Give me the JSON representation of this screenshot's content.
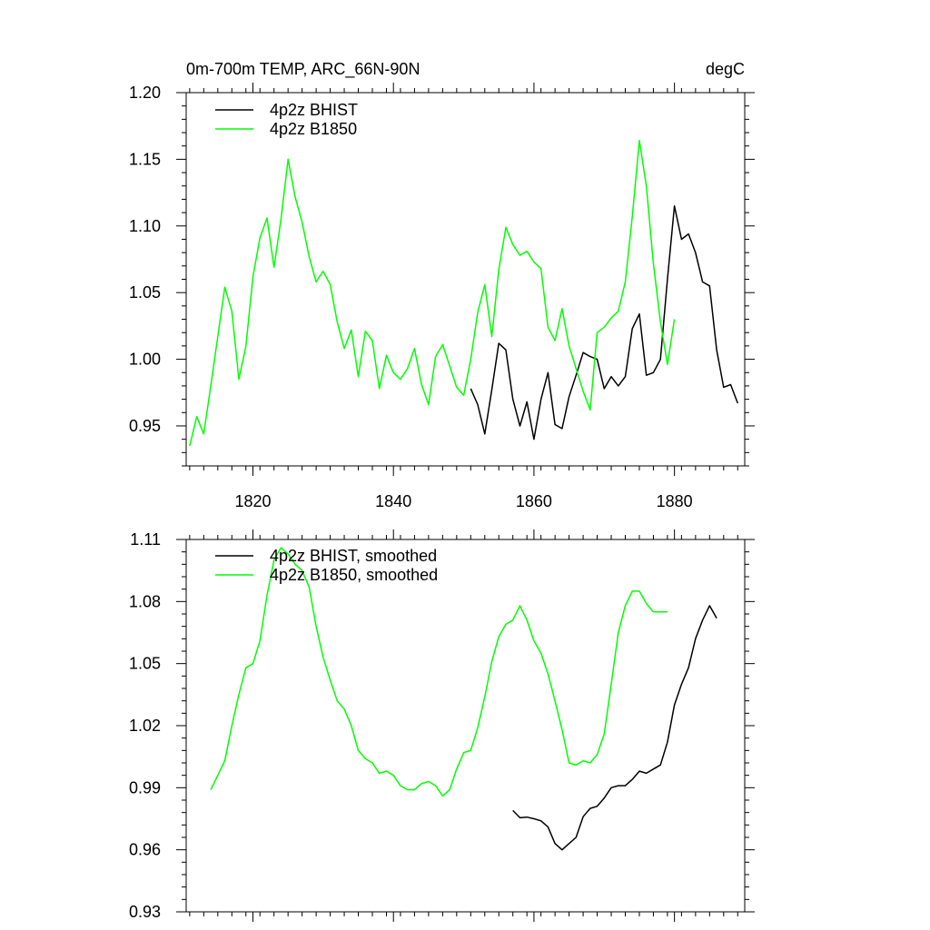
{
  "figure": {
    "title_left": "0m-700m TEMP, ARC_66N-90N",
    "title_right": "degC"
  },
  "colors": {
    "bhist": "#000000",
    "b1850": "#00ff00",
    "axis": "#000000"
  },
  "chart_data": [
    {
      "type": "line",
      "xlim": [
        1810.5,
        1890
      ],
      "ylim": [
        0.92,
        1.2
      ],
      "x_ticks": [
        1820,
        1840,
        1860,
        1880
      ],
      "x_tick_labels": [
        "1820",
        "1840",
        "1860",
        "1880"
      ],
      "y_ticks": [
        0.95,
        1.0,
        1.05,
        1.1,
        1.15,
        1.2
      ],
      "y_tick_labels": [
        "0.95",
        "1.00",
        "1.05",
        "1.10",
        "1.15",
        "1.20"
      ],
      "legend": [
        "4p2z BHIST",
        "4p2z B1850"
      ],
      "series": [
        {
          "name": "4p2z BHIST",
          "color": "#000000",
          "x": [
            1851,
            1852,
            1853,
            1854,
            1855,
            1856,
            1857,
            1858,
            1859,
            1860,
            1861,
            1862,
            1863,
            1864,
            1865,
            1866,
            1867,
            1868,
            1869,
            1870,
            1871,
            1872,
            1873,
            1874,
            1875,
            1876,
            1877,
            1878,
            1879,
            1880,
            1881,
            1882,
            1883,
            1884,
            1885,
            1886,
            1887,
            1888,
            1889
          ],
          "values": [
            0.978,
            0.966,
            0.944,
            0.977,
            1.012,
            1.007,
            0.97,
            0.95,
            0.968,
            0.94,
            0.97,
            0.99,
            0.951,
            0.948,
            0.972,
            0.988,
            1.005,
            1.002,
            1.0,
            0.978,
            0.987,
            0.98,
            0.987,
            1.023,
            1.034,
            0.988,
            0.99,
            1.0,
            1.06,
            1.115,
            1.09,
            1.094,
            1.08,
            1.058,
            1.055,
            1.007,
            0.979,
            0.981,
            0.967
          ]
        },
        {
          "name": "4p2z B1850",
          "color": "#00ff00",
          "x": [
            1811,
            1812,
            1813,
            1814,
            1815,
            1816,
            1817,
            1818,
            1819,
            1820,
            1821,
            1822,
            1823,
            1824,
            1825,
            1826,
            1827,
            1828,
            1829,
            1830,
            1831,
            1832,
            1833,
            1834,
            1835,
            1836,
            1837,
            1838,
            1839,
            1840,
            1841,
            1842,
            1843,
            1844,
            1845,
            1846,
            1847,
            1848,
            1849,
            1850,
            1851,
            1852,
            1853,
            1854,
            1855,
            1856,
            1857,
            1858,
            1859,
            1860,
            1861,
            1862,
            1863,
            1864,
            1865,
            1866,
            1867,
            1868,
            1869,
            1870,
            1871,
            1872,
            1873,
            1874,
            1875,
            1876,
            1877,
            1878,
            1879,
            1880
          ],
          "values": [
            0.935,
            0.957,
            0.944,
            0.98,
            1.017,
            1.054,
            1.036,
            0.985,
            1.01,
            1.062,
            1.091,
            1.106,
            1.069,
            1.105,
            1.15,
            1.122,
            1.103,
            1.077,
            1.058,
            1.066,
            1.056,
            1.028,
            1.008,
            1.022,
            0.987,
            1.021,
            1.014,
            0.978,
            1.003,
            0.99,
            0.985,
            0.993,
            1.008,
            0.981,
            0.966,
            1.002,
            1.011,
            0.995,
            0.979,
            0.973,
            1.0,
            1.035,
            1.056,
            1.017,
            1.067,
            1.099,
            1.086,
            1.078,
            1.081,
            1.073,
            1.068,
            1.024,
            1.014,
            1.038,
            1.01,
            0.993,
            0.976,
            0.962,
            1.02,
            1.024,
            1.031,
            1.036,
            1.058,
            1.107,
            1.164,
            1.13,
            1.072,
            1.028,
            0.996,
            1.03
          ]
        }
      ]
    },
    {
      "type": "line",
      "xlim": [
        1810.5,
        1890
      ],
      "ylim": [
        0.93,
        1.11
      ],
      "x_ticks": [
        1820,
        1840,
        1860,
        1880
      ],
      "x_tick_labels": [],
      "y_ticks": [
        0.93,
        0.96,
        0.99,
        1.02,
        1.05,
        1.08,
        1.11
      ],
      "y_tick_labels": [
        "0.93",
        "0.96",
        "0.99",
        "1.02",
        "1.05",
        "1.08",
        "1.11"
      ],
      "legend": [
        "4p2z BHIST, smoothed",
        "4p2z B1850, smoothed"
      ],
      "series": [
        {
          "name": "4p2z BHIST, smoothed",
          "color": "#000000",
          "x": [
            1857,
            1858,
            1859,
            1860,
            1861,
            1862,
            1863,
            1864,
            1865,
            1866,
            1867,
            1868,
            1869,
            1870,
            1871,
            1872,
            1873,
            1874,
            1875,
            1876,
            1877,
            1878,
            1879,
            1880,
            1881,
            1882,
            1883,
            1884,
            1885,
            1886
          ],
          "values": [
            0.979,
            0.9755,
            0.9758,
            0.975,
            0.974,
            0.971,
            0.963,
            0.96,
            0.963,
            0.966,
            0.976,
            0.98,
            0.981,
            0.985,
            0.99,
            0.991,
            0.991,
            0.994,
            0.998,
            0.997,
            0.999,
            1.001,
            1.012,
            1.03,
            1.04,
            1.048,
            1.062,
            1.071,
            1.078,
            1.072
          ]
        },
        {
          "name": "4p2z B1850, smoothed",
          "color": "#00ff00",
          "x": [
            1814,
            1815,
            1816,
            1817,
            1818,
            1819,
            1820,
            1821,
            1822,
            1823,
            1824,
            1825,
            1826,
            1827,
            1828,
            1829,
            1830,
            1831,
            1832,
            1833,
            1834,
            1835,
            1836,
            1837,
            1838,
            1839,
            1840,
            1841,
            1842,
            1843,
            1844,
            1845,
            1846,
            1847,
            1848,
            1849,
            1850,
            1851,
            1852,
            1853,
            1854,
            1855,
            1856,
            1857,
            1858,
            1859,
            1860,
            1861,
            1862,
            1863,
            1864,
            1865,
            1866,
            1867,
            1868,
            1869,
            1870,
            1871,
            1872,
            1873,
            1874,
            1875,
            1876,
            1877,
            1878,
            1879
          ],
          "values": [
            0.989,
            0.996,
            1.003,
            1.02,
            1.035,
            1.048,
            1.05,
            1.061,
            1.083,
            1.1,
            1.106,
            1.103,
            1.098,
            1.095,
            1.087,
            1.068,
            1.053,
            1.042,
            1.032,
            1.028,
            1.02,
            1.008,
            1.004,
            1.002,
            0.997,
            0.998,
            0.996,
            0.991,
            0.989,
            0.989,
            0.992,
            0.993,
            0.991,
            0.986,
            0.989,
            0.999,
            1.007,
            1.008,
            1.019,
            1.034,
            1.051,
            1.063,
            1.069,
            1.071,
            1.078,
            1.071,
            1.061,
            1.055,
            1.045,
            1.032,
            1.018,
            1.002,
            1.001,
            1.003,
            1.002,
            1.006,
            1.016,
            1.04,
            1.065,
            1.078,
            1.085,
            1.085,
            1.079,
            1.075,
            1.075,
            1.075
          ]
        }
      ]
    }
  ]
}
